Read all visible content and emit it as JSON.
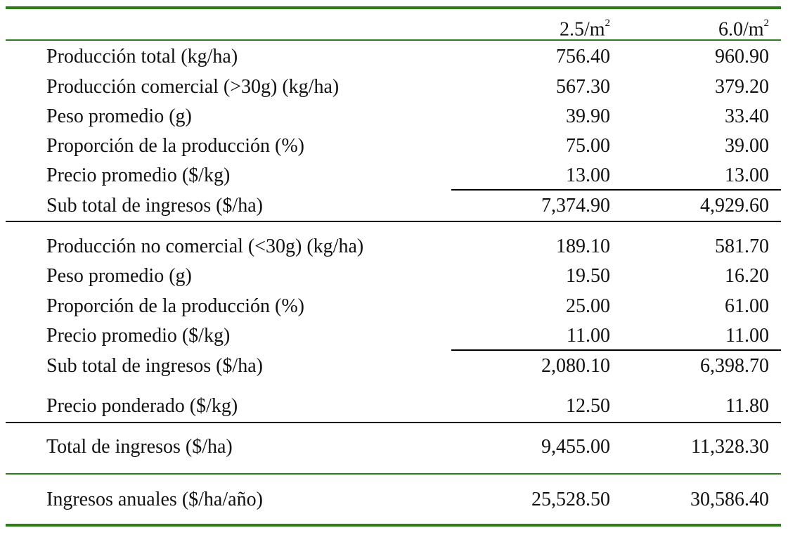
{
  "header": {
    "col1": {
      "base": "2.5/m",
      "sup": "2"
    },
    "col2": {
      "base": "6.0/m",
      "sup": "2"
    }
  },
  "rows": [
    {
      "label": "Producción total (kg/ha)",
      "v1": "756.40",
      "v2": "960.90"
    },
    {
      "label": "Producción comercial (>30g) (kg/ha)",
      "v1": "567.30",
      "v2": "379.20"
    },
    {
      "label": "Peso promedio (g)",
      "v1": "39.90",
      "v2": "33.40"
    },
    {
      "label": "Proporción de la producción (%)",
      "v1": "75.00",
      "v2": "39.00"
    },
    {
      "label": "Precio promedio ($/kg)",
      "v1": "13.00",
      "v2": "13.00"
    },
    {
      "label": "Sub total de ingresos ($/ha)",
      "v1": "7,374.90",
      "v2": "4,929.60"
    },
    {
      "label": "Producción no comercial (<30g) (kg/ha)",
      "v1": "189.10",
      "v2": "581.70"
    },
    {
      "label": "Peso promedio (g)",
      "v1": "19.50",
      "v2": "16.20"
    },
    {
      "label": "Proporción de la producción (%)",
      "v1": "25.00",
      "v2": "61.00"
    },
    {
      "label": "Precio promedio ($/kg)",
      "v1": "11.00",
      "v2": "11.00"
    },
    {
      "label": "Sub total de ingresos ($/ha)",
      "v1": "2,080.10",
      "v2": "6,398.70"
    },
    {
      "label": "Precio ponderado ($/kg)",
      "v1": "12.50",
      "v2": "11.80"
    },
    {
      "label": "Total de ingresos ($/ha)",
      "v1": "9,455.00",
      "v2": "11,328.30"
    },
    {
      "label": "Ingresos anuales ($/ha/año)",
      "v1": "25,528.50",
      "v2": "30,586.40"
    }
  ],
  "colors": {
    "rule_green": "#2e7d1c",
    "rule_black": "#000000",
    "text": "#111111"
  }
}
